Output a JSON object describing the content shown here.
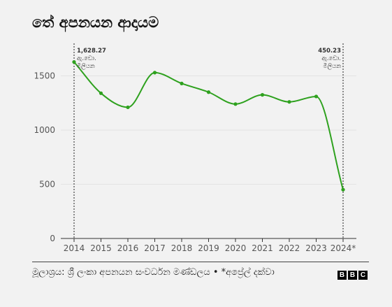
{
  "title": "තේ අපනයන ආදායම",
  "footer": {
    "source": "මූලාශ්‍රය: ශ්‍රී ලංකා අපනයන සංවර්ධන මණ්ඩලය • *අප්‍රේල් දක්වා",
    "logo": [
      "B",
      "B",
      "C"
    ]
  },
  "chart_data": {
    "type": "line",
    "title": "තේ අපනයන ආදායම",
    "x": [
      "2014",
      "2015",
      "2016",
      "2017",
      "2018",
      "2019",
      "2020",
      "2021",
      "2022",
      "2023",
      "2024*"
    ],
    "series": [
      {
        "values": [
          1628.27,
          1340,
          1210,
          1530,
          1430,
          1350,
          1240,
          1325,
          1260,
          1310,
          450.23
        ],
        "color": "#2ea11e"
      }
    ],
    "ylim": [
      0,
      1800
    ],
    "yticks": [
      0,
      500,
      1000,
      1500
    ],
    "grid": true,
    "annotations": [
      {
        "index": 0,
        "value": "1,628.27",
        "unit_1": "ඇ.ඩො.",
        "unit_2": "මිලියන",
        "align": "left"
      },
      {
        "index": 10,
        "value": "450.23",
        "unit_1": "ඇ.ඩො.",
        "unit_2": "මිලියන",
        "align": "right"
      }
    ],
    "colors": {
      "line": "#2ea11e",
      "grid": "#e3e3e3",
      "axis": "#333333"
    }
  }
}
